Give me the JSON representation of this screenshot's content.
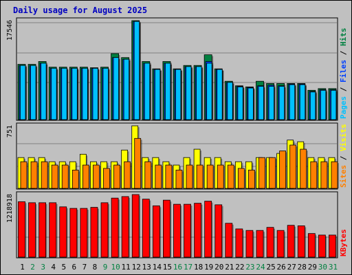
{
  "title": "Daily usage for August 2025",
  "colors": {
    "background": "#c0c0c0",
    "panel": "#c0c0c0",
    "gridline": "#808080",
    "title": "#0000c0",
    "pages": "#00c0ff",
    "files": "#0040ff",
    "hits": "#008040",
    "sites": "#ff8000",
    "visits": "#ffff00",
    "kbytes": "#ff0000",
    "weekend_label": "#008040",
    "weekday_label": "#000000"
  },
  "chart_data": [
    {
      "type": "bar",
      "panel": "pages-files-hits",
      "max_label": "17546",
      "ylim": [
        0,
        17546
      ],
      "legend": [
        {
          "text": "Pages",
          "color": "#00c0ff"
        },
        {
          "text": "Files",
          "color": "#0040ff"
        },
        {
          "text": "Hits",
          "color": "#008040"
        }
      ],
      "series": [
        {
          "name": "Hits",
          "values": [
            9800,
            9800,
            10300,
            9300,
            9300,
            9300,
            9300,
            9200,
            9300,
            11700,
            11000,
            17546,
            10300,
            9000,
            10300,
            9000,
            9600,
            9600,
            11500,
            9000,
            6800,
            6000,
            5800,
            6800,
            6400,
            6400,
            6400,
            6400,
            5200,
            5500,
            5500
          ]
        },
        {
          "name": "Files",
          "values": [
            9600,
            9600,
            10000,
            9100,
            9100,
            9100,
            9100,
            9100,
            9100,
            11000,
            10700,
            17400,
            10000,
            8900,
            10000,
            8900,
            9400,
            9400,
            10300,
            8900,
            6600,
            5900,
            5700,
            6000,
            6100,
            6000,
            6300,
            6300,
            5000,
            5300,
            5300
          ]
        },
        {
          "name": "Pages",
          "values": [
            9600,
            9600,
            10000,
            9100,
            9100,
            9100,
            9100,
            9100,
            9100,
            11000,
            10700,
            17400,
            10000,
            8900,
            10000,
            8900,
            9400,
            9400,
            10000,
            8900,
            6600,
            5800,
            5600,
            5900,
            5900,
            5900,
            6200,
            6200,
            4900,
            5200,
            5200
          ]
        }
      ]
    },
    {
      "type": "bar",
      "panel": "sites-visits",
      "max_label": "751",
      "ylim": [
        0,
        751
      ],
      "legend": [
        {
          "text": "Sites",
          "color": "#ff8000"
        },
        {
          "text": "Visits",
          "color": "#ffff00"
        }
      ],
      "series": [
        {
          "name": "Visits",
          "values": [
            370,
            370,
            370,
            320,
            320,
            320,
            410,
            320,
            320,
            320,
            460,
            751,
            370,
            370,
            320,
            280,
            370,
            470,
            370,
            370,
            320,
            320,
            320,
            370,
            370,
            420,
            580,
            560,
            370,
            370,
            370
          ]
        },
        {
          "name": "Sites",
          "values": [
            320,
            320,
            320,
            280,
            280,
            220,
            280,
            280,
            240,
            280,
            320,
            600,
            320,
            280,
            280,
            220,
            280,
            280,
            280,
            280,
            280,
            240,
            220,
            370,
            370,
            450,
            520,
            470,
            320,
            320,
            320
          ]
        }
      ]
    },
    {
      "type": "bar",
      "panel": "kbytes",
      "max_label": "1218918",
      "ylim": [
        0,
        1218918
      ],
      "legend": [
        {
          "text": "KBytes",
          "color": "#ff0000"
        }
      ],
      "series": [
        {
          "name": "KBytes",
          "values": [
            1080000,
            1060000,
            1060000,
            1060000,
            980000,
            950000,
            950000,
            970000,
            1060000,
            1150000,
            1180000,
            1218918,
            1130000,
            1000000,
            1110000,
            1030000,
            1030000,
            1050000,
            1090000,
            1020000,
            660000,
            550000,
            520000,
            520000,
            580000,
            520000,
            620000,
            610000,
            460000,
            430000,
            430000
          ]
        }
      ]
    }
  ],
  "x_axis": {
    "days": [
      "1",
      "2",
      "3",
      "4",
      "5",
      "6",
      "7",
      "8",
      "9",
      "10",
      "11",
      "12",
      "13",
      "14",
      "15",
      "16",
      "17",
      "18",
      "19",
      "20",
      "21",
      "22",
      "23",
      "24",
      "25",
      "26",
      "27",
      "28",
      "29",
      "30",
      "31"
    ],
    "weekend_days": [
      "2",
      "3",
      "9",
      "10",
      "16",
      "17",
      "23",
      "24",
      "30",
      "31"
    ]
  }
}
